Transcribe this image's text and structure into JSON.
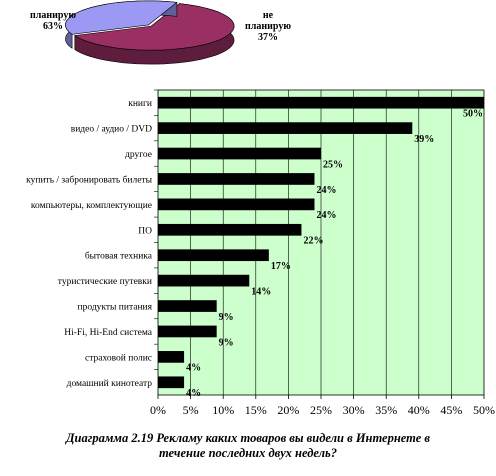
{
  "chart_data": [
    {
      "type": "pie",
      "slices": [
        {
          "label": "планирую",
          "value": 63,
          "value_label": "63%",
          "color": "#9a2f63"
        },
        {
          "label": "не планирую",
          "value": 37,
          "value_label": "37%",
          "color": "#9c99f5"
        }
      ]
    },
    {
      "type": "bar",
      "orientation": "horizontal",
      "categories": [
        "книги",
        "видео / аудио / DVD",
        "другое",
        "купить / забронировать билеты",
        "компьютеры, комплектующие",
        "ПО",
        "бытовая техника",
        "туристические путевки",
        "продукты питания",
        "Hi-Fi, Hi-End система",
        "страховой полис",
        "домашний кинотеатр"
      ],
      "values": [
        50,
        39,
        25,
        24,
        24,
        22,
        17,
        14,
        9,
        9,
        4,
        4
      ],
      "value_labels": [
        "50%",
        "39%",
        "25%",
        "24%",
        "24%",
        "22%",
        "17%",
        "14%",
        "9%",
        "9%",
        "4%",
        "4%"
      ],
      "xlim": [
        0,
        50
      ],
      "xticks": [
        "0%",
        "5%",
        "10%",
        "15%",
        "20%",
        "25%",
        "30%",
        "35%",
        "40%",
        "45%",
        "50%"
      ],
      "grid": true,
      "plot_background": "#ccffcc",
      "bar_color": "#000000"
    }
  ],
  "caption": {
    "line1": "Диаграмма 2.19 Рекламу каких товаров вы видели в Интернете в",
    "line2": "течение последних двух недель?"
  }
}
